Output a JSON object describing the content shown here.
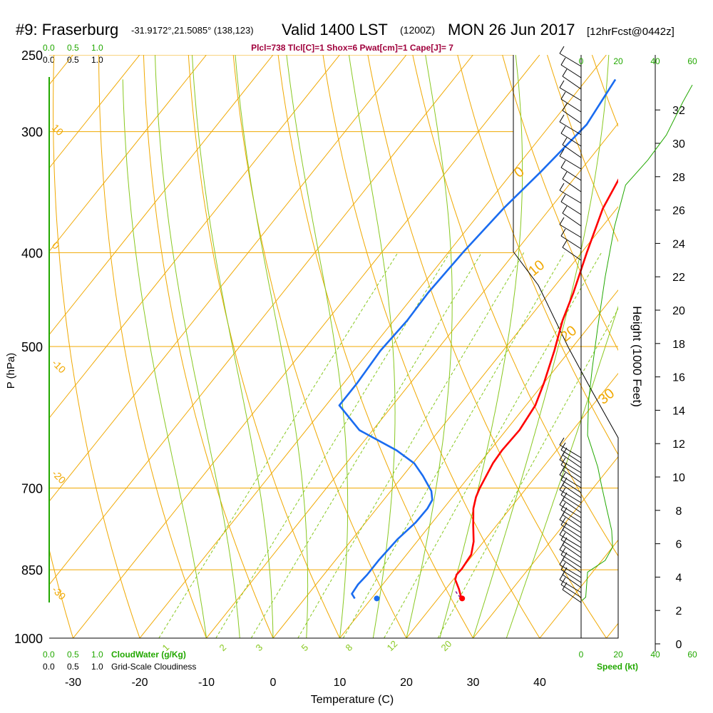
{
  "header": {
    "station": "#9: Fraserburg",
    "coords": "-31.9172°,21.5085° (138,123)",
    "valid": "Valid 1400 LST",
    "zulu": "(1200Z)",
    "date": "MON 26 Jun 2017",
    "forecast": "[12hrFcst@0442z]",
    "indices": "Plcl=738 Tlcl[C]=1 Shox=6 Pwat[cm]=1 Cape[J]= 7"
  },
  "labels": {
    "ylabel": "P (hPa)",
    "xlabel": "Temperature (C)",
    "height_label": "Height (1000 Feet)",
    "cloudwater": "CloudWater (g/Kg)",
    "cloudiness": "Grid-Scale Cloudiness",
    "speed": "Speed (kt)"
  },
  "colors": {
    "isotherm": "#f0a800",
    "dry_adiabat": "#f0a800",
    "moist_adiabat": "#88c820",
    "mixing_ratio": "#88c820",
    "temperature": "#ff0000",
    "dewpoint": "#1a6cf0",
    "green_text": "#22a800",
    "indices_text": "#a0003c"
  },
  "chart_data": {
    "type": "line",
    "title": "#9: Fraserburg  Valid 1400 LST (1200Z) MON 26 Jun 2017",
    "xlabel": "Temperature (C)",
    "ylabel": "P (hPa)",
    "xlim": [
      -35,
      52
    ],
    "ylim": [
      1000,
      250
    ],
    "x_ticks": [
      -30,
      -20,
      -10,
      0,
      10,
      20,
      30,
      40
    ],
    "p_ticks": [
      250,
      300,
      400,
      500,
      700,
      850,
      1000
    ],
    "mixing_ratio_labels": [
      "1",
      "2",
      "3",
      "5",
      "8",
      "12",
      "20"
    ],
    "dry_adiabat_labels": [
      "10",
      "0",
      "-10",
      "-20",
      "-30"
    ],
    "moist_adiabat_labels": [
      "0",
      "10",
      "20",
      "30"
    ],
    "series": [
      {
        "name": "Temperature",
        "x": [
          23.5,
          22.0,
          20.3,
          19.9,
          20.0,
          19.7,
          18.5,
          16.5,
          14.5,
          13.5,
          13.0,
          12.0,
          11.8,
          12.0,
          11.4,
          10.0,
          7.7,
          5.3,
          3.6,
          0.8,
          -2.1,
          -3.5,
          -5.0,
          -5.6
        ],
        "y": [
          910,
          890,
          870,
          860,
          848,
          820,
          795,
          765,
          735,
          715,
          700,
          660,
          640,
          610,
          575,
          545,
          505,
          470,
          440,
          400,
          360,
          330,
          295,
          265
        ]
      },
      {
        "name": "Dewpoint",
        "x": [
          7.5,
          6.5,
          6.3,
          6.5,
          6.5,
          6.8,
          7.5,
          7.6,
          7.3,
          6.1,
          3.0,
          0.2,
          -4.0,
          -12.0,
          -18.0,
          -18.0,
          -18.4,
          -18.0,
          -18.2,
          -17.8,
          -17.0,
          -15.8,
          -14.6,
          -15.7
        ],
        "y": [
          910,
          900,
          880,
          860,
          830,
          790,
          760,
          735,
          720,
          705,
          680,
          660,
          640,
          610,
          575,
          545,
          505,
          470,
          440,
          400,
          360,
          330,
          295,
          265
        ]
      },
      {
        "name": "Parcel",
        "x": [
          23.5,
          22.5,
          21.8
        ],
        "y": [
          910,
          902,
          895
        ]
      }
    ],
    "surface_points": [
      {
        "name": "Surface Temperature",
        "x": 23.6,
        "p": 910
      },
      {
        "name": "Surface Dewpoint",
        "x": 10.8,
        "p": 910
      }
    ],
    "wind_panel": {
      "speed_ticks": [
        "0",
        "20",
        "40",
        "60"
      ],
      "height_ticks": [
        "0",
        "2",
        "4",
        "6",
        "8",
        "10",
        "12",
        "14",
        "16",
        "18",
        "20",
        "22",
        "24",
        "26",
        "28",
        "30",
        "32"
      ],
      "speed_profile_kt": [
        {
          "h_kft": 2.6,
          "speed": 0.5
        },
        {
          "h_kft": 2.8,
          "speed": 2.5
        },
        {
          "h_kft": 4.3,
          "speed": 3.5
        },
        {
          "h_kft": 5.0,
          "speed": 13
        },
        {
          "h_kft": 5.8,
          "speed": 17
        },
        {
          "h_kft": 6.8,
          "speed": 16.5
        },
        {
          "h_kft": 8.0,
          "speed": 14
        },
        {
          "h_kft": 9.5,
          "speed": 11
        },
        {
          "h_kft": 10.6,
          "speed": 9
        },
        {
          "h_kft": 12.5,
          "speed": 3.5
        },
        {
          "h_kft": 14.5,
          "speed": 4
        },
        {
          "h_kft": 16.5,
          "speed": 6
        },
        {
          "h_kft": 19.0,
          "speed": 9
        },
        {
          "h_kft": 22.0,
          "speed": 13
        },
        {
          "h_kft": 25.0,
          "speed": 18
        },
        {
          "h_kft": 27.5,
          "speed": 24
        },
        {
          "h_kft": 29.0,
          "speed": 36
        },
        {
          "h_kft": 30.5,
          "speed": 46
        },
        {
          "h_kft": 32.5,
          "speed": 55
        },
        {
          "h_kft": 33.5,
          "speed": 60
        }
      ],
      "cloudwater_ticks": [
        "0.0",
        "0.5",
        "1.0"
      ],
      "cloudiness_ticks": [
        "0.0",
        "0.5",
        "1.0"
      ]
    }
  }
}
